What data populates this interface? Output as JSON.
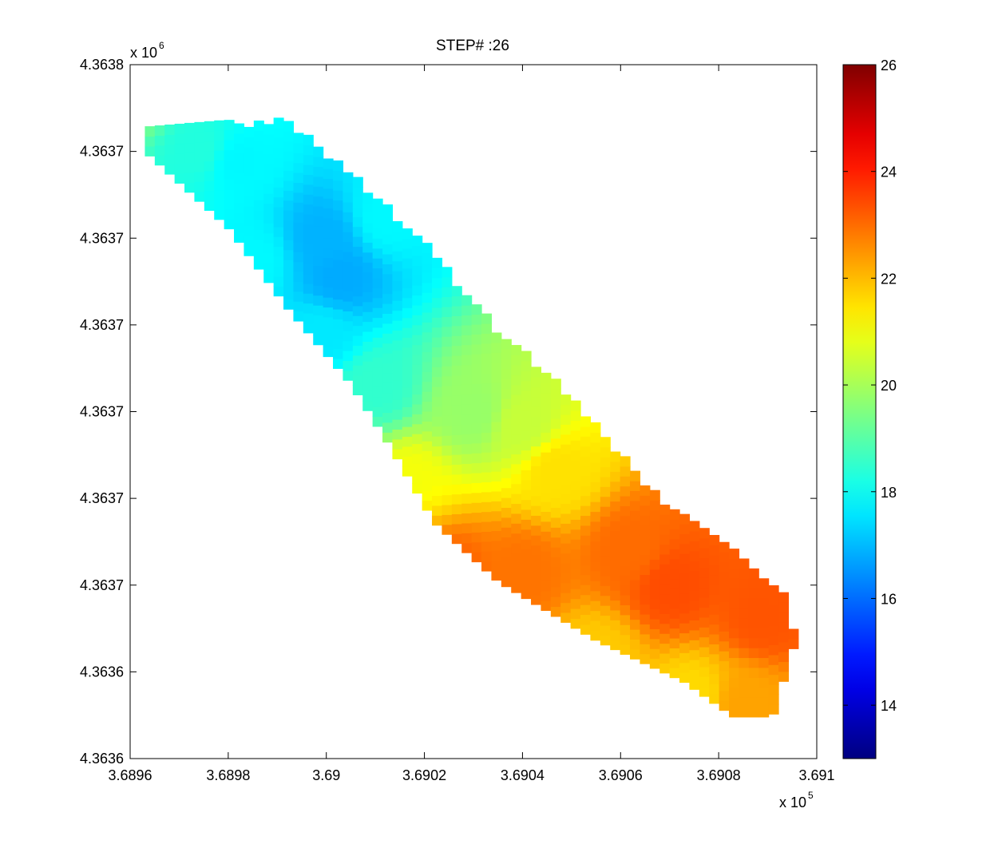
{
  "chart_data": {
    "type": "heatmap",
    "title": "STEP# :26",
    "colormap": "jet",
    "colorbar": {
      "range": [
        13,
        26
      ],
      "ticks": [
        14,
        16,
        18,
        20,
        22,
        24,
        26
      ],
      "tick_labels": [
        "14",
        "16",
        "18",
        "20",
        "22",
        "24",
        "26"
      ],
      "placement": "right"
    },
    "x_axis": {
      "range": [
        368960,
        369100
      ],
      "tick_labels": [
        "3.6896",
        "3.6898",
        "3.69",
        "3.6902",
        "3.6904",
        "3.6906",
        "3.6908",
        "3.691"
      ],
      "multiplier_base": "x 10",
      "multiplier_exp": "5"
    },
    "y_axis": {
      "range": [
        4363600,
        4363800
      ],
      "tick_labels": [
        "4.3638",
        "4.3637",
        "4.3637",
        "4.3637",
        "4.3637",
        "4.3637",
        "4.3637",
        "4.3636",
        "4.3636"
      ],
      "multiplier_base": "x 10",
      "multiplier_exp": "6"
    },
    "grid": false,
    "field": {
      "description_points": [
        {
          "x": 368961.5,
          "y": 4363793,
          "value": 19.7
        },
        {
          "x": 368974,
          "y": 4363776,
          "value": 18.3
        },
        {
          "x": 368982,
          "y": 4363772,
          "value": 17.8
        },
        {
          "x": 368985,
          "y": 4363744,
          "value": 17.8
        },
        {
          "x": 368999.5,
          "y": 4363750,
          "value": 16.9
        },
        {
          "x": 369003,
          "y": 4363739,
          "value": 16.8
        },
        {
          "x": 369012,
          "y": 4363756,
          "value": 17.8
        },
        {
          "x": 368999,
          "y": 4363722,
          "value": 17.6
        },
        {
          "x": 369010,
          "y": 4363707,
          "value": 18.5
        },
        {
          "x": 369003,
          "y": 4363690,
          "value": 19.2
        },
        {
          "x": 369030,
          "y": 4363700,
          "value": 19.8
        },
        {
          "x": 369040,
          "y": 4363696,
          "value": 20.4
        },
        {
          "x": 369016,
          "y": 4363680,
          "value": 21.0
        },
        {
          "x": 369047,
          "y": 4363683,
          "value": 21.5
        },
        {
          "x": 369012,
          "y": 4363668,
          "value": 22.4
        },
        {
          "x": 369025,
          "y": 4363654,
          "value": 23.1
        },
        {
          "x": 369040,
          "y": 4363654,
          "value": 22.9
        },
        {
          "x": 369062,
          "y": 4363660,
          "value": 23.0
        },
        {
          "x": 369070,
          "y": 4363650,
          "value": 23.4
        },
        {
          "x": 369089,
          "y": 4363641,
          "value": 23.3
        },
        {
          "x": 369055,
          "y": 4363630,
          "value": 21.8
        },
        {
          "x": 369075,
          "y": 4363618,
          "value": 21.6
        },
        {
          "x": 369085,
          "y": 4363616,
          "value": 22.3
        }
      ]
    }
  }
}
